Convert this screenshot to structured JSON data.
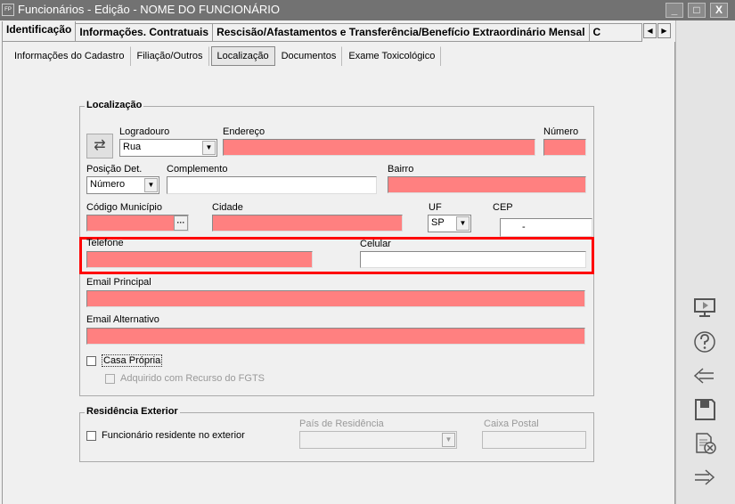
{
  "window": {
    "title": "Funcionários - Edição - NOME DO FUNCIONÁRIO",
    "icon_text": "FP",
    "controls": [
      "_",
      "□",
      "X"
    ]
  },
  "main_tabs": [
    "Identificação",
    "Informações. Contratuais",
    "Rescisão/Afastamentos e Transferência/Benefício Extraordinário Mensal",
    "C"
  ],
  "sub_tabs": [
    "Informações do Cadastro",
    "Filiação/Outros",
    "Localização",
    "Documentos",
    "Exame Toxicológico"
  ],
  "localizacao": {
    "title": "Localização",
    "logradouro_label": "Logradouro",
    "logradouro_value": "Rua",
    "endereco_label": "Endereço",
    "numero_label": "Número",
    "posicao_label": "Posição Det.",
    "posicao_value": "Número",
    "complemento_label": "Complemento",
    "bairro_label": "Bairro",
    "codigo_municipio_label": "Código Município",
    "ellipsis": "···",
    "cidade_label": "Cidade",
    "uf_label": "UF",
    "uf_value": "SP",
    "cep_label": "CEP",
    "cep_value": "-",
    "telefone_label": "Telefone",
    "celular_label": "Celular",
    "email_principal_label": "Email Principal",
    "email_alternativo_label": "Email Alternativo",
    "casa_propria_label": "Casa Própria",
    "fgts_label": "Adquirido com Recurso do FGTS"
  },
  "residencia": {
    "title": "Residência Exterior",
    "residente_label": "Funcionário residente no exterior",
    "pais_label": "País de Residência",
    "caixa_postal_label": "Caixa Postal"
  },
  "colors": {
    "required_field": "#ff8080",
    "highlight": "#ff0000",
    "titlebar": "#727272"
  }
}
